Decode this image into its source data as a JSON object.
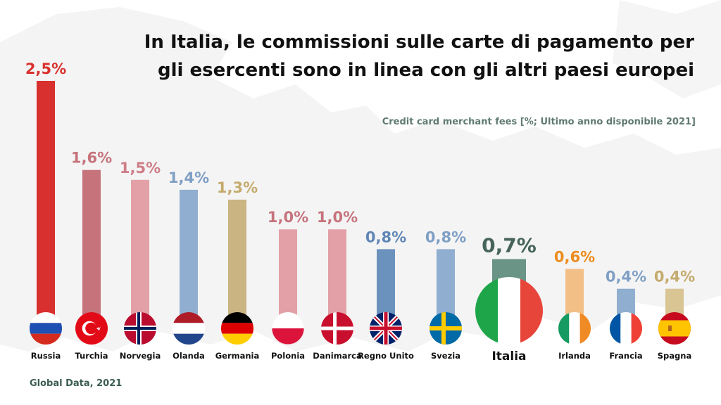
{
  "title_line1": "In Italia, le commissioni sulle carte di pagamento per",
  "title_line2": "gli esercenti sono in linea con gli altri paesi europei",
  "subtitle": "Credit card merchant fees [%; Ultimo anno disponibile 2021]",
  "source": "Global Data, 2021",
  "chart_data": {
    "type": "bar",
    "title": "",
    "xlabel": "",
    "ylabel": "",
    "ylim": [
      0,
      2.5
    ],
    "grid": false,
    "categories": [
      "Russia",
      "Turchia",
      "Norvegia",
      "Olanda",
      "Germania",
      "Polonia",
      "Danimarca",
      "Regno Unito",
      "Svezia",
      "Italia",
      "Irlanda",
      "Francia",
      "Spagna"
    ],
    "values": [
      2.5,
      1.6,
      1.5,
      1.4,
      1.3,
      1.0,
      1.0,
      0.8,
      0.8,
      0.7,
      0.6,
      0.4,
      0.4
    ],
    "value_labels": [
      "2,5%",
      "1,6%",
      "1,5%",
      "1,4%",
      "1,3%",
      "1,0%",
      "1,0%",
      "0,8%",
      "0,8%",
      "0,7%",
      "0,6%",
      "0,4%",
      "0,4%"
    ],
    "bar_colors": [
      "#d8302e",
      "#c6737c",
      "#e3a0a6",
      "#90aed0",
      "#c9b482",
      "#e3a0a6",
      "#e3a0a6",
      "#6b92bd",
      "#90aed0",
      "#6a9486",
      "#f2bf86",
      "#90aed0",
      "#d9c594"
    ],
    "label_colors": [
      "#d8302e",
      "#c6737c",
      "#cf7d87",
      "#7f9fc4",
      "#c4aa6c",
      "#c6737c",
      "#c6737c",
      "#5f86b5",
      "#7f9fc4",
      "#46645a",
      "#ec8c1e",
      "#7f9fc4",
      "#c4aa6c"
    ],
    "flags": [
      "russia-flag",
      "turkey-flag",
      "norway-flag",
      "netherlands-flag",
      "germany-flag",
      "poland-flag",
      "denmark-flag",
      "uk-flag",
      "sweden-flag",
      "italy-flag",
      "ireland-flag",
      "france-flag",
      "spain-flag"
    ],
    "highlight": "Italia"
  }
}
